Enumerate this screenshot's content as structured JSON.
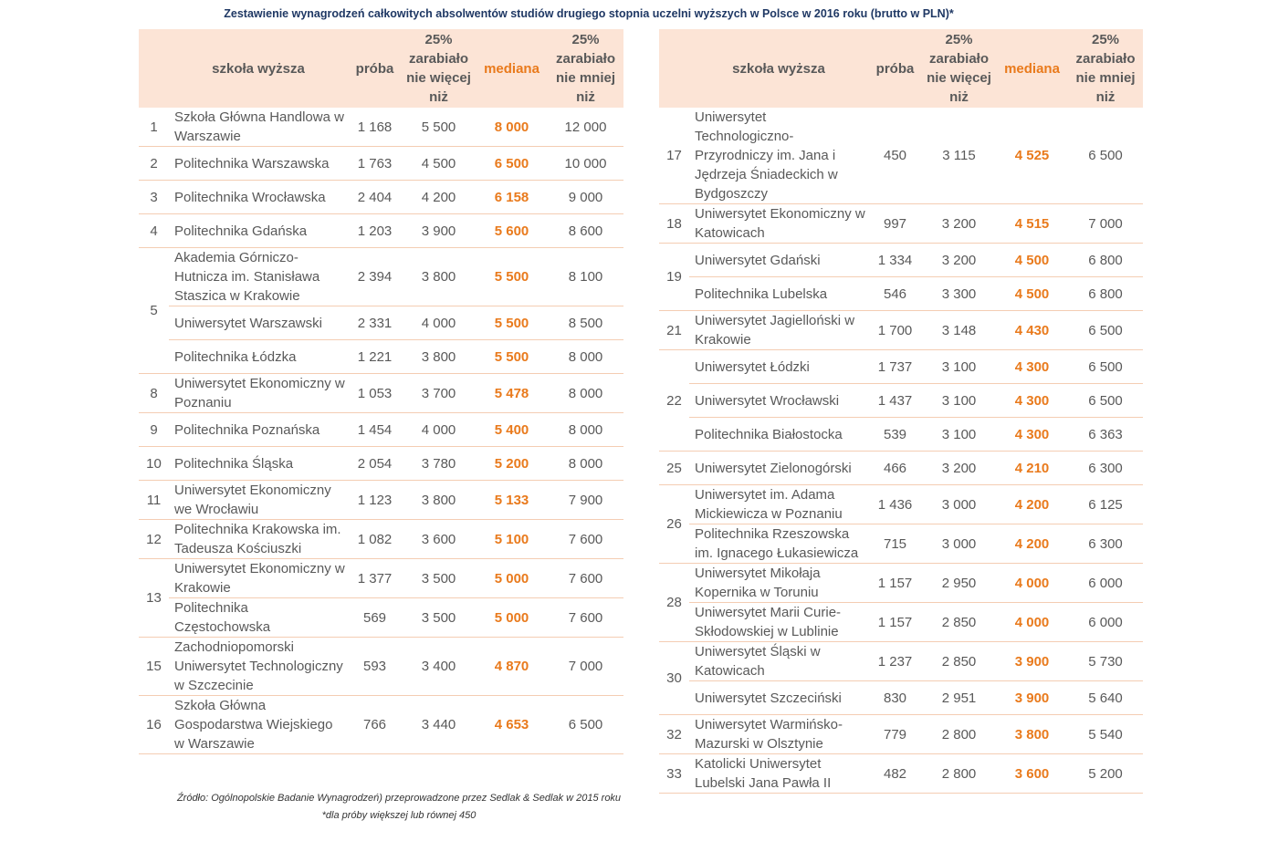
{
  "title": "Zestawienie wynagrodzeń całkowitych absolwentów  studiów drugiego stopnia uczelni wyższych w Polsce w 2016 roku (brutto w PLN)*",
  "tables": [
    {
      "header": [
        "szkoła wyższa",
        "próba",
        "25% zarabiało nie więcej niż",
        "mediana",
        "25% zarabiało nie mniej niż"
      ],
      "groups": [
        {
          "rank": "1",
          "rows": [
            [
              "Szkoła Główna Handlowa w Warszawie",
              "1 168",
              "5 500",
              "8 000",
              "12 000"
            ]
          ]
        },
        {
          "rank": "2",
          "rows": [
            [
              "Politechnika Warszawska",
              "1 763",
              "4 500",
              "6 500",
              "10 000"
            ]
          ]
        },
        {
          "rank": "3",
          "rows": [
            [
              "Politechnika Wrocławska",
              "2 404",
              "4 200",
              "6 158",
              "9 000"
            ]
          ]
        },
        {
          "rank": "4",
          "rows": [
            [
              "Politechnika Gdańska",
              "1 203",
              "3 900",
              "5 600",
              "8 600"
            ]
          ]
        },
        {
          "rank": "5",
          "rows": [
            [
              "Akademia Górniczo-Hutnicza im. Stanisława Staszica w Krakowie",
              "2 394",
              "3 800",
              "5 500",
              "8 100"
            ],
            [
              "Uniwersytet Warszawski",
              "2 331",
              "4 000",
              "5 500",
              "8 500"
            ],
            [
              "Politechnika Łódzka",
              "1 221",
              "3 800",
              "5 500",
              "8 000"
            ]
          ]
        },
        {
          "rank": "8",
          "rows": [
            [
              "Uniwersytet Ekonomiczny w Poznaniu",
              "1 053",
              "3 700",
              "5 478",
              "8 000"
            ]
          ]
        },
        {
          "rank": "9",
          "rows": [
            [
              "Politechnika Poznańska",
              "1 454",
              "4 000",
              "5 400",
              "8 000"
            ]
          ]
        },
        {
          "rank": "10",
          "rows": [
            [
              "Politechnika Śląska",
              "2 054",
              "3 780",
              "5 200",
              "8 000"
            ]
          ]
        },
        {
          "rank": "11",
          "rows": [
            [
              "Uniwersytet Ekonomiczny we Wrocławiu",
              "1 123",
              "3 800",
              "5 133",
              "7 900"
            ]
          ]
        },
        {
          "rank": "12",
          "rows": [
            [
              "Politechnika Krakowska im. Tadeusza Kościuszki",
              "1 082",
              "3 600",
              "5 100",
              "7 600"
            ]
          ]
        },
        {
          "rank": "13",
          "rows": [
            [
              "Uniwersytet Ekonomiczny w Krakowie",
              "1 377",
              "3 500",
              "5 000",
              "7 600"
            ],
            [
              "Politechnika Częstochowska",
              "569",
              "3 500",
              "5 000",
              "7 600"
            ]
          ]
        },
        {
          "rank": "15",
          "rows": [
            [
              "Zachodniopomorski Uniwersytet Technologiczny w Szczecinie",
              "593",
              "3 400",
              "4 870",
              "7 000"
            ]
          ]
        },
        {
          "rank": "16",
          "rows": [
            [
              "Szkoła Główna Gospodarstwa Wiejskiego w Warszawie",
              "766",
              "3 440",
              "4 653",
              "6 500"
            ]
          ]
        }
      ]
    },
    {
      "header": [
        "szkoła wyższa",
        "próba",
        "25% zarabiało nie więcej niż",
        "mediana",
        "25% zarabiało nie mniej niż"
      ],
      "groups": [
        {
          "rank": "17",
          "rows": [
            [
              "Uniwersytet Technologiczno-Przyrodniczy im. Jana i Jędrzeja Śniadeckich w Bydgoszczy",
              "450",
              "3 115",
              "4 525",
              "6 500"
            ]
          ]
        },
        {
          "rank": "18",
          "rows": [
            [
              "Uniwersytet Ekonomiczny w Katowicach",
              "997",
              "3 200",
              "4 515",
              "7 000"
            ]
          ]
        },
        {
          "rank": "19",
          "rows": [
            [
              "Uniwersytet Gdański",
              "1 334",
              "3 200",
              "4 500",
              "6 800"
            ],
            [
              "Politechnika Lubelska",
              "546",
              "3 300",
              "4 500",
              "6 800"
            ]
          ]
        },
        {
          "rank": "21",
          "rows": [
            [
              "Uniwersytet Jagielloński w Krakowie",
              "1 700",
              "3 148",
              "4 430",
              "6 500"
            ]
          ]
        },
        {
          "rank": "22",
          "rows": [
            [
              "Uniwersytet Łódzki",
              "1 737",
              "3 100",
              "4 300",
              "6 500"
            ],
            [
              "Uniwersytet Wrocławski",
              "1 437",
              "3 100",
              "4 300",
              "6 500"
            ],
            [
              "Politechnika Białostocka",
              "539",
              "3 100",
              "4 300",
              "6 363"
            ]
          ]
        },
        {
          "rank": "25",
          "rows": [
            [
              "Uniwersytet Zielonogórski",
              "466",
              "3 200",
              "4 210",
              "6 300"
            ]
          ]
        },
        {
          "rank": "26",
          "rows": [
            [
              "Uniwersytet im. Adama Mickiewicza w Poznaniu",
              "1 436",
              "3 000",
              "4 200",
              "6 125"
            ],
            [
              "Politechnika Rzeszowska im. Ignacego Łukasiewicza",
              "715",
              "3 000",
              "4 200",
              "6 300"
            ]
          ]
        },
        {
          "rank": "28",
          "rows": [
            [
              "Uniwersytet Mikołaja Kopernika w Toruniu",
              "1 157",
              "2 950",
              "4 000",
              "6 000"
            ],
            [
              "Uniwersytet Marii Curie-Skłodowskiej w Lublinie",
              "1 157",
              "2 850",
              "4 000",
              "6 000"
            ]
          ]
        },
        {
          "rank": "30",
          "rows": [
            [
              "Uniwersytet Śląski w Katowicach",
              "1 237",
              "2 850",
              "3 900",
              "5 730"
            ],
            [
              "Uniwersytet Szczeciński",
              "830",
              "2 951",
              "3 900",
              "5 640"
            ]
          ]
        },
        {
          "rank": "32",
          "rows": [
            [
              "Uniwersytet Warmińsko-Mazurski w Olsztynie",
              "779",
              "2 800",
              "3 800",
              "5 540"
            ]
          ]
        },
        {
          "rank": "33",
          "rows": [
            [
              "Katolicki Uniwersytet Lubelski Jana Pawła II",
              "482",
              "2 800",
              "3 600",
              "5 200"
            ]
          ]
        }
      ]
    }
  ],
  "notes": [
    "Źródło: Ogólnopolskie Badanie Wynagrodzeń) przeprowadzone przez Sedlak & Sedlak w 2015 roku",
    "*dla próby większej lub równej 450"
  ]
}
